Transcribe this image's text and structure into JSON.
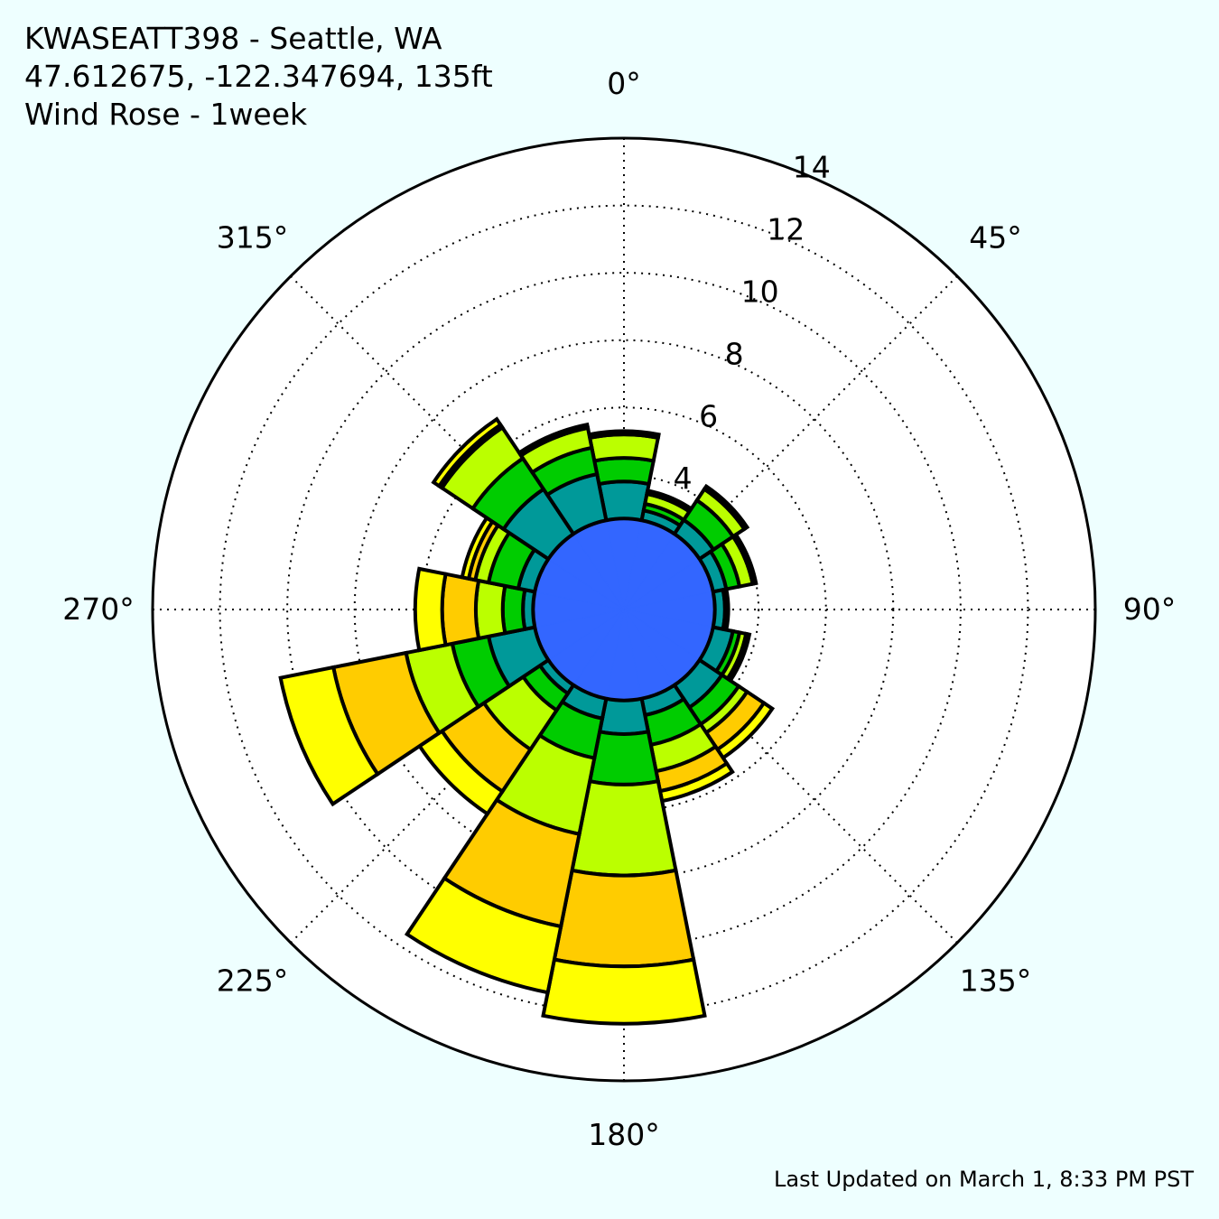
{
  "header": {
    "station": "KWASEATT398 - Seattle, WA",
    "location": "47.612675, -122.347694, 135ft",
    "title": "Wind Rose - 1week"
  },
  "footer": {
    "updated": "Last Updated on March 1, 8:33 PM PST"
  },
  "chart_data": {
    "type": "windrose",
    "rmax": 14,
    "radial_ticks": [
      "4",
      "6",
      "8",
      "10",
      "12",
      "14"
    ],
    "radial_tick_values": [
      4,
      6,
      8,
      10,
      12,
      14
    ],
    "angle_ticks": [
      "0°",
      "45°",
      "90°",
      "135°",
      "180°",
      "225°",
      "270°",
      "315°"
    ],
    "angle_tick_values": [
      0,
      45,
      90,
      135,
      180,
      225,
      270,
      315
    ],
    "sector_width_deg": 22.5,
    "speed_bin_colors": [
      "#3366ff",
      "#009999",
      "#00cc00",
      "#bbff00",
      "#ffcc00",
      "#ffff00"
    ],
    "directions": [
      0,
      22.5,
      45,
      67.5,
      90,
      112.5,
      135,
      157.5,
      180,
      202.5,
      225,
      247.5,
      270,
      292.5,
      315,
      337.5
    ],
    "cumulative_radii": [
      [
        2.7,
        3.8,
        4.5,
        5.2,
        5.2,
        5.3
      ],
      [
        2.7,
        3.0,
        3.2,
        3.5,
        3.5,
        3.6
      ],
      [
        2.7,
        3.2,
        3.9,
        4.3,
        4.3,
        4.4
      ],
      [
        2.7,
        3.1,
        3.5,
        3.9,
        3.9,
        4.0
      ],
      [
        2.7,
        3.0,
        3.0,
        3.1,
        3.1,
        3.1
      ],
      [
        2.7,
        3.3,
        3.5,
        3.7,
        3.7,
        3.8
      ],
      [
        2.7,
        3.5,
        4.1,
        4.4,
        5.0,
        5.3
      ],
      [
        2.7,
        3.2,
        4.1,
        4.9,
        5.5,
        5.8
      ],
      [
        2.7,
        3.7,
        5.2,
        7.9,
        10.6,
        12.3
      ],
      [
        2.7,
        3.3,
        4.5,
        6.8,
        9.6,
        11.6
      ],
      [
        2.7,
        3.0,
        3.6,
        5.0,
        6.5,
        7.3
      ],
      [
        2.7,
        4.1,
        5.2,
        6.6,
        8.8,
        10.4
      ],
      [
        2.7,
        3.0,
        3.6,
        4.4,
        5.4,
        6.2
      ],
      [
        2.7,
        3.2,
        4.1,
        4.5,
        4.7,
        4.9
      ],
      [
        2.7,
        4.3,
        5.4,
        6.5,
        6.6,
        6.8
      ],
      [
        2.7,
        4.1,
        4.9,
        5.5,
        5.5,
        5.6
      ]
    ]
  }
}
